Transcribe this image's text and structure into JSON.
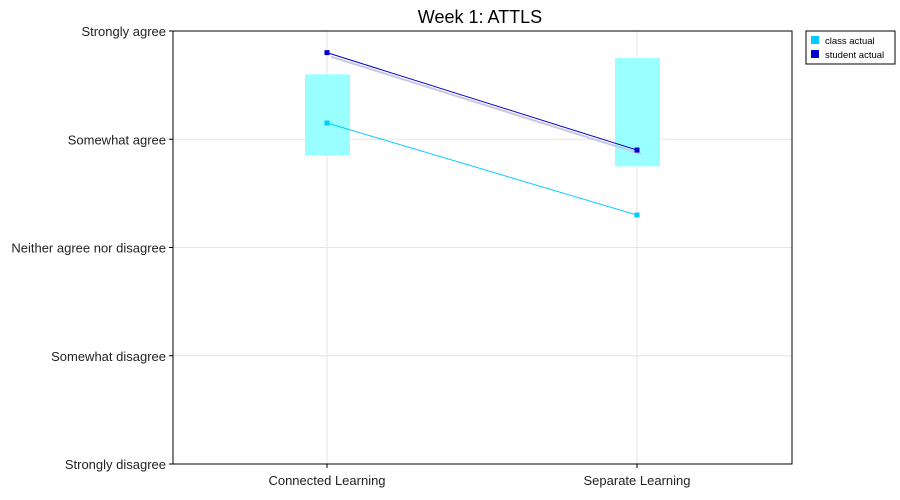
{
  "chart_data": {
    "type": "line",
    "title": "Week 1: ATTLS",
    "categories": [
      "Connected Learning",
      "Separate Learning"
    ],
    "y_ticks": [
      "Strongly disagree",
      "Somewhat disagree",
      "Neither agree nor disagree",
      "Somewhat agree",
      "Strongly agree"
    ],
    "ylim": [
      1,
      5
    ],
    "grid": true,
    "legend_position": "top-right outside",
    "series": [
      {
        "name": "class actual",
        "values": [
          4.15,
          3.3
        ],
        "color": "#00ccff"
      },
      {
        "name": "student actual",
        "values": [
          4.8,
          3.9
        ],
        "color": "#0000cc"
      }
    ],
    "class_range": [
      {
        "low": 3.85,
        "high": 4.6
      },
      {
        "low": 3.75,
        "high": 4.75
      }
    ],
    "range_color": "#99ffff"
  }
}
